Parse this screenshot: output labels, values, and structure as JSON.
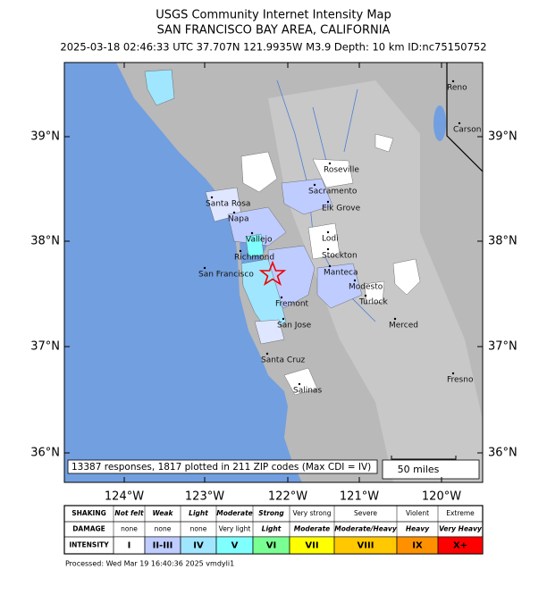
{
  "header": {
    "title": "USGS Community Internet Intensity Map",
    "subtitle": "SAN FRANCISCO BAY AREA, CALIFORNIA",
    "event_info": "2025-03-18 02:46:33 UTC 37.707N 121.9935W M3.9 Depth: 10 km ID:nc75150752"
  },
  "map": {
    "lat_labels": [
      "39°N",
      "38°N",
      "37°N",
      "36°N"
    ],
    "lon_labels": [
      "124°W",
      "123°W",
      "122°W",
      "121°W",
      "120°W"
    ],
    "cities": [
      "Reno",
      "Carson City",
      "Roseville",
      "Sacramento",
      "Santa Rosa",
      "Napa",
      "Elk Grove",
      "Vallejo",
      "Lodi",
      "Richmond",
      "Stockton",
      "San Francisco",
      "Manteca",
      "Modesto",
      "Fremont",
      "Turlock",
      "Merced",
      "San Jose",
      "Santa Cruz",
      "Fresno",
      "Salinas"
    ],
    "responses_note": "13387 responses, 1817 plotted in 211 ZIP codes (Max CDI = IV)",
    "scale_label": "50 miles"
  },
  "legend": {
    "row_labels": [
      "SHAKING",
      "DAMAGE",
      "INTENSITY"
    ],
    "shaking": [
      "Not felt",
      "Weak",
      "Light",
      "Moderate",
      "Strong",
      "Very strong",
      "Severe",
      "Violent",
      "Extreme"
    ],
    "damage": [
      "none",
      "none",
      "none",
      "Very light",
      "Light",
      "Moderate",
      "Moderate/Heavy",
      "Heavy",
      "Very Heavy"
    ],
    "intensity": [
      "I",
      "II-III",
      "IV",
      "V",
      "VI",
      "VII",
      "VIII",
      "IX",
      "X+"
    ]
  },
  "footer": {
    "processed": "Processed: Wed Mar 19 16:40:36 2025 vmdyli1"
  }
}
